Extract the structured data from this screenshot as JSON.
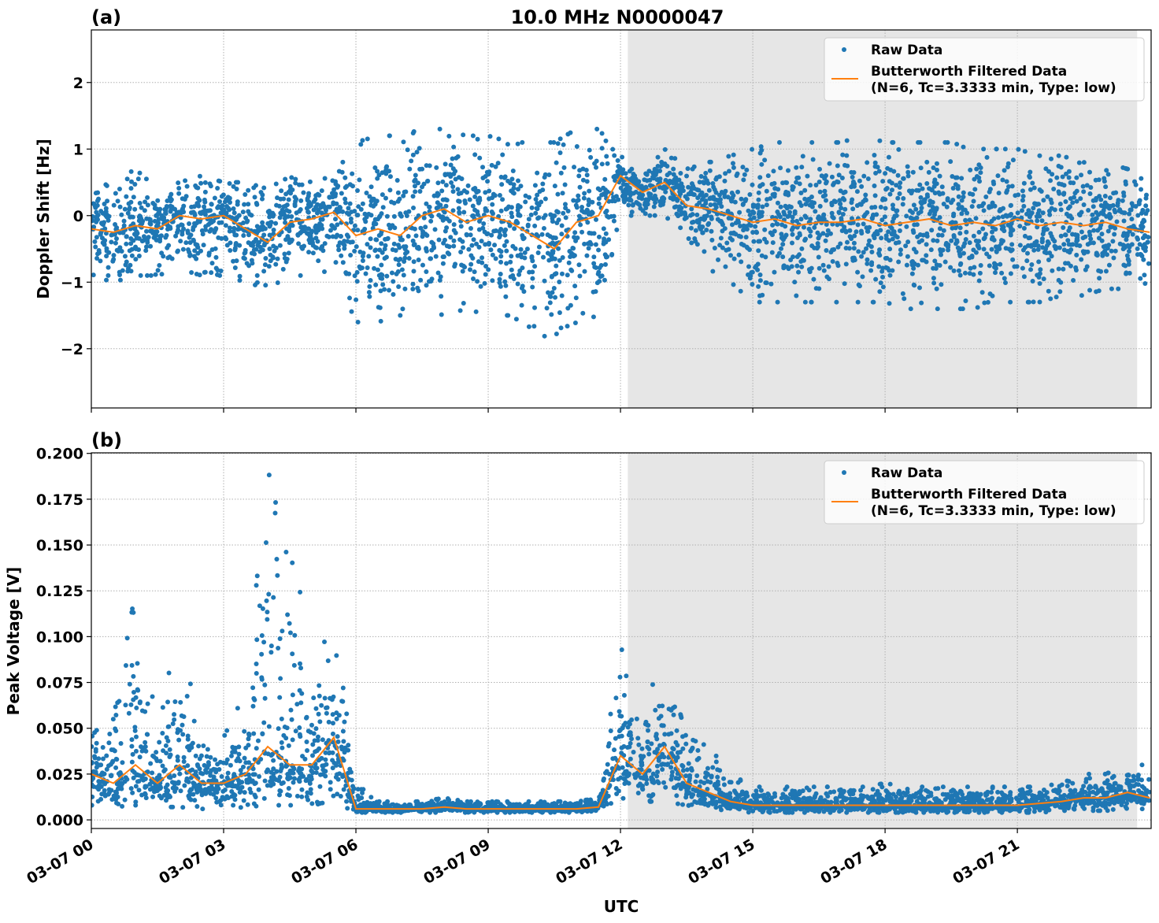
{
  "chart_data": [
    {
      "type": "scatter",
      "panel_label": "(a)",
      "title": "10.0 MHz N0000047",
      "xlabel": "",
      "ylabel": "Doppler Shift [Hz]",
      "ylim": [
        -2.89,
        2.79
      ],
      "yticks": [
        -2,
        -1,
        0,
        1,
        2
      ],
      "ytick_labels": [
        "−2",
        "−1",
        "0",
        "1",
        "2"
      ],
      "xlim": [
        "03-07 00:00",
        "03-08 00:02"
      ],
      "grid": true,
      "shaded_region": {
        "start": "03-07 12:10",
        "end": "03-07 23:43",
        "color": "#e6e6e6"
      },
      "legend": {
        "placement": "upper right",
        "entries": [
          "Raw Data",
          "Butterworth Filtered Data",
          "(N=6, Tc=3.3333 min, Type: low)"
        ]
      },
      "colors": {
        "raw": "#1f77b4",
        "filtered": "#ff7f0e"
      },
      "x": [
        "00:00",
        "00:30",
        "01:00",
        "01:30",
        "02:00",
        "02:30",
        "03:00",
        "03:30",
        "04:00",
        "04:30",
        "05:00",
        "05:30",
        "06:00",
        "06:30",
        "07:00",
        "07:30",
        "08:00",
        "08:30",
        "09:00",
        "09:30",
        "10:00",
        "10:30",
        "11:00",
        "11:30",
        "12:00",
        "12:30",
        "13:00",
        "13:30",
        "14:00",
        "14:30",
        "15:00",
        "15:30",
        "16:00",
        "16:30",
        "17:00",
        "17:30",
        "18:00",
        "18:30",
        "19:00",
        "19:30",
        "20:00",
        "20:30",
        "21:00",
        "21:30",
        "22:00",
        "22:30",
        "23:00",
        "23:30",
        "24:00"
      ],
      "series": [
        {
          "name": "Butterworth Filtered Data",
          "values": [
            -0.2,
            -0.25,
            -0.15,
            -0.2,
            0.0,
            -0.05,
            0.0,
            -0.2,
            -0.4,
            -0.1,
            -0.05,
            0.05,
            -0.3,
            -0.2,
            -0.3,
            0.0,
            0.1,
            -0.1,
            0.0,
            -0.1,
            -0.3,
            -0.5,
            -0.1,
            0.0,
            0.6,
            0.35,
            0.5,
            0.15,
            0.1,
            0.0,
            -0.1,
            -0.05,
            -0.15,
            -0.1,
            -0.1,
            -0.05,
            -0.15,
            -0.1,
            -0.05,
            -0.15,
            -0.1,
            -0.15,
            -0.05,
            -0.15,
            -0.1,
            -0.15,
            -0.1,
            -0.2,
            -0.25
          ]
        },
        {
          "name": "Raw Data lower envelope",
          "values": [
            -0.9,
            -1.0,
            -0.9,
            -0.9,
            -0.8,
            -0.9,
            -0.9,
            -1.0,
            -1.1,
            -0.9,
            -0.9,
            -0.8,
            -1.6,
            -1.6,
            -1.5,
            -1.4,
            -1.5,
            -1.4,
            -1.5,
            -1.5,
            -1.7,
            -1.9,
            -1.6,
            -1.5,
            0.0,
            0.0,
            0.0,
            -0.3,
            -0.8,
            -1.0,
            -1.3,
            -1.3,
            -1.3,
            -1.3,
            -1.3,
            -1.3,
            -1.3,
            -1.4,
            -1.4,
            -1.4,
            -1.4,
            -1.3,
            -1.3,
            -1.3,
            -1.2,
            -1.2,
            -1.1,
            -1.1,
            -1.0
          ]
        },
        {
          "name": "Raw Data upper envelope",
          "values": [
            0.4,
            0.5,
            0.7,
            0.4,
            0.5,
            0.6,
            0.5,
            0.5,
            0.4,
            0.6,
            0.5,
            0.6,
            1.1,
            1.2,
            1.2,
            1.3,
            1.3,
            1.2,
            1.2,
            1.1,
            1.1,
            1.1,
            1.3,
            1.3,
            0.9,
            0.6,
            1.0,
            0.7,
            0.8,
            0.9,
            1.0,
            1.1,
            1.1,
            1.1,
            1.1,
            1.2,
            1.1,
            1.1,
            1.1,
            1.1,
            1.0,
            1.0,
            1.0,
            0.9,
            0.9,
            0.8,
            0.8,
            0.7,
            0.6
          ]
        }
      ]
    },
    {
      "type": "scatter",
      "panel_label": "(b)",
      "xlabel": "UTC",
      "ylabel": "Peak Voltage [V]",
      "ylim": [
        -0.0047,
        0.2003
      ],
      "yticks": [
        0,
        0.025,
        0.05,
        0.075,
        0.1,
        0.125,
        0.15,
        0.175,
        0.2
      ],
      "ytick_labels": [
        "0.000",
        "0.025",
        "0.050",
        "0.075",
        "0.100",
        "0.125",
        "0.150",
        "0.175",
        "0.200"
      ],
      "xlim": [
        "03-07 00:00",
        "03-08 00:02"
      ],
      "xticks": [
        "00:00",
        "03:00",
        "06:00",
        "09:00",
        "12:00",
        "15:00",
        "18:00",
        "21:00"
      ],
      "xtick_labels": [
        "03-07 00",
        "03-07 03",
        "03-07 06",
        "03-07 09",
        "03-07 12",
        "03-07 15",
        "03-07 18",
        "03-07 21"
      ],
      "grid": true,
      "shaded_region": {
        "start": "03-07 12:10",
        "end": "03-07 23:43",
        "color": "#e6e6e6"
      },
      "legend": {
        "placement": "upper right",
        "entries": [
          "Raw Data",
          "Butterworth Filtered Data",
          "(N=6, Tc=3.3333 min, Type: low)"
        ]
      },
      "colors": {
        "raw": "#1f77b4",
        "filtered": "#ff7f0e"
      },
      "x": [
        "00:00",
        "00:30",
        "01:00",
        "01:30",
        "02:00",
        "02:30",
        "03:00",
        "03:30",
        "04:00",
        "04:30",
        "05:00",
        "05:30",
        "06:00",
        "06:30",
        "07:00",
        "07:30",
        "08:00",
        "08:30",
        "09:00",
        "09:30",
        "10:00",
        "10:30",
        "11:00",
        "11:30",
        "12:00",
        "12:30",
        "13:00",
        "13:30",
        "14:00",
        "14:30",
        "15:00",
        "15:30",
        "16:00",
        "16:30",
        "17:00",
        "17:30",
        "18:00",
        "18:30",
        "19:00",
        "19:30",
        "20:00",
        "20:30",
        "21:00",
        "21:30",
        "22:00",
        "22:30",
        "23:00",
        "23:30",
        "24:00"
      ],
      "series": [
        {
          "name": "Butterworth Filtered Data",
          "values": [
            0.025,
            0.02,
            0.03,
            0.02,
            0.03,
            0.02,
            0.02,
            0.025,
            0.04,
            0.03,
            0.03,
            0.045,
            0.006,
            0.006,
            0.006,
            0.006,
            0.007,
            0.006,
            0.006,
            0.006,
            0.006,
            0.006,
            0.006,
            0.007,
            0.035,
            0.025,
            0.04,
            0.02,
            0.015,
            0.01,
            0.008,
            0.008,
            0.008,
            0.008,
            0.008,
            0.008,
            0.008,
            0.008,
            0.008,
            0.008,
            0.008,
            0.008,
            0.008,
            0.009,
            0.01,
            0.012,
            0.012,
            0.015,
            0.012
          ]
        },
        {
          "name": "Raw Data lower envelope",
          "values": [
            0.008,
            0.007,
            0.008,
            0.007,
            0.007,
            0.006,
            0.006,
            0.007,
            0.008,
            0.008,
            0.008,
            0.01,
            0.004,
            0.004,
            0.004,
            0.004,
            0.004,
            0.004,
            0.004,
            0.004,
            0.004,
            0.004,
            0.004,
            0.005,
            0.012,
            0.01,
            0.01,
            0.008,
            0.006,
            0.005,
            0.004,
            0.004,
            0.004,
            0.004,
            0.004,
            0.004,
            0.004,
            0.004,
            0.004,
            0.004,
            0.004,
            0.004,
            0.004,
            0.004,
            0.005,
            0.005,
            0.005,
            0.006,
            0.006
          ]
        },
        {
          "name": "Raw Data upper envelope",
          "values": [
            0.05,
            0.055,
            0.125,
            0.05,
            0.108,
            0.04,
            0.045,
            0.07,
            0.19,
            0.163,
            0.08,
            0.11,
            0.02,
            0.01,
            0.01,
            0.01,
            0.012,
            0.01,
            0.01,
            0.01,
            0.01,
            0.01,
            0.01,
            0.012,
            0.095,
            0.06,
            0.09,
            0.045,
            0.04,
            0.025,
            0.018,
            0.018,
            0.018,
            0.018,
            0.018,
            0.018,
            0.02,
            0.018,
            0.018,
            0.018,
            0.018,
            0.018,
            0.018,
            0.018,
            0.02,
            0.025,
            0.025,
            0.03,
            0.03
          ]
        }
      ]
    }
  ]
}
